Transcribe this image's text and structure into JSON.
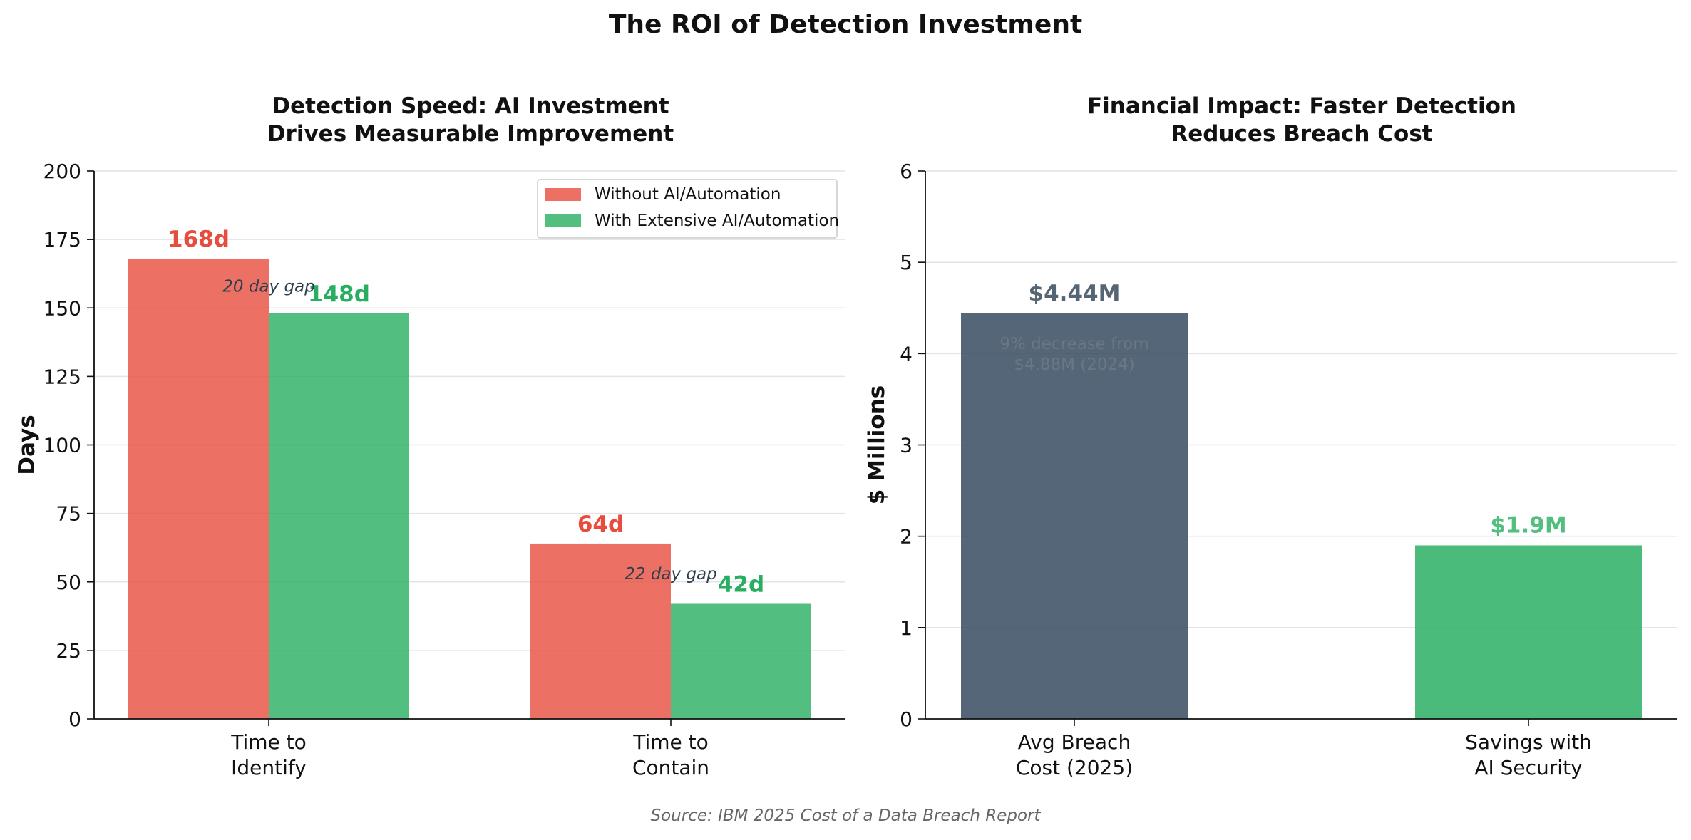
{
  "figure": {
    "title": "The ROI of Detection Investment",
    "source": "Source: IBM 2025 Cost of a Data Breach Report"
  },
  "chart_data": [
    {
      "type": "bar",
      "title": "Detection Speed: AI Investment\nDrives Measurable Improvement",
      "xlabel": "",
      "ylabel": "Days",
      "ylim": [
        0,
        200
      ],
      "yticks": [
        0,
        25,
        50,
        75,
        100,
        125,
        150,
        175,
        200
      ],
      "categories": [
        "Time to\nIdentify",
        "Time to\nContain"
      ],
      "series": [
        {
          "name": "Without AI/Automation",
          "color": "#e74c3c",
          "values": [
            168,
            64
          ],
          "labels": [
            "168d",
            "64d"
          ]
        },
        {
          "name": "With Extensive AI/Automation",
          "color": "#27ae60",
          "values": [
            148,
            42
          ],
          "labels": [
            "148d",
            "42d"
          ]
        }
      ],
      "annotations": [
        "20 day gap",
        "22 day gap"
      ],
      "grid": true,
      "legend": "upper right"
    },
    {
      "type": "bar",
      "title": "Financial Impact: Faster Detection\nReduces Breach Cost",
      "xlabel": "",
      "ylabel": "$ Millions",
      "ylim": [
        0,
        6
      ],
      "yticks": [
        0,
        1,
        2,
        3,
        4,
        5,
        6
      ],
      "categories": [
        "Avg Breach\nCost (2025)",
        "Savings with\nAI Security"
      ],
      "values": [
        4.44,
        1.9
      ],
      "labels": [
        "$4.44M",
        "$1.9M"
      ],
      "colors": [
        "#34495e",
        "#27ae60"
      ],
      "label_colors": [
        "#566573",
        "#52be80"
      ],
      "annotations": [
        "9% decrease from\n$4.88M (2024)"
      ],
      "grid": true
    }
  ]
}
